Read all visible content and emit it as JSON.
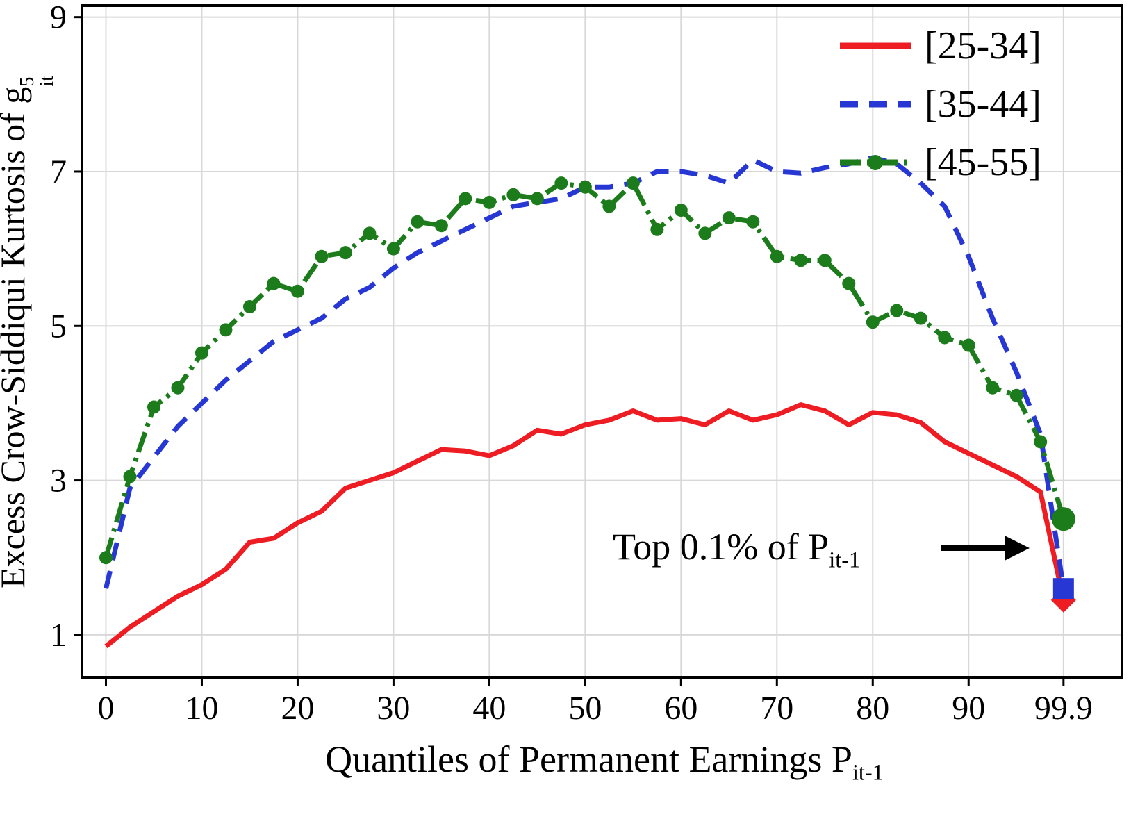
{
  "figure": {
    "bg": "#ffffff",
    "grid_color": "#d8d8d8",
    "axis_color": "#000000"
  },
  "chart_data": {
    "type": "line",
    "title": "",
    "xlabel_main": "Quantiles of Permanent Earnings P",
    "xlabel_sub": "it-1",
    "ylabel_main": "Excess Crow-Siddiqui Kurtosis of g",
    "ylabel_sup": "5",
    "ylabel_sub": "it",
    "xlim": [
      -2.5,
      106
    ],
    "ylim": [
      0.45,
      9.15
    ],
    "grid": true,
    "legend_position": "top-right",
    "xticks": [
      {
        "v": 0,
        "label": "0"
      },
      {
        "v": 10,
        "label": "10"
      },
      {
        "v": 20,
        "label": "20"
      },
      {
        "v": 30,
        "label": "30"
      },
      {
        "v": 40,
        "label": "40"
      },
      {
        "v": 50,
        "label": "50"
      },
      {
        "v": 60,
        "label": "60"
      },
      {
        "v": 70,
        "label": "70"
      },
      {
        "v": 80,
        "label": "80"
      },
      {
        "v": 90,
        "label": "90"
      },
      {
        "v": 99.9,
        "label": "99.9"
      }
    ],
    "yticks": [
      {
        "v": 1,
        "label": "1"
      },
      {
        "v": 3,
        "label": "3"
      },
      {
        "v": 5,
        "label": "5"
      },
      {
        "v": 7,
        "label": "7"
      },
      {
        "v": 9,
        "label": "9"
      }
    ],
    "x": [
      0,
      2.5,
      5,
      7.5,
      10,
      12.5,
      15,
      17.5,
      20,
      22.5,
      25,
      27.5,
      30,
      32.5,
      35,
      37.5,
      40,
      42.5,
      45,
      47.5,
      50,
      52.5,
      55,
      57.5,
      60,
      62.5,
      65,
      67.5,
      70,
      72.5,
      75,
      77.5,
      80,
      82.5,
      85,
      87.5,
      90,
      92.5,
      95,
      97.5,
      99.9
    ],
    "series": [
      {
        "name": "[25-34]",
        "color": "#ee1c23",
        "style": "solid",
        "marker": "none",
        "end_marker": "diamond",
        "values": [
          0.85,
          1.1,
          1.3,
          1.5,
          1.65,
          1.85,
          2.2,
          2.25,
          2.45,
          2.6,
          2.9,
          3.0,
          3.1,
          3.25,
          3.4,
          3.38,
          3.32,
          3.45,
          3.65,
          3.6,
          3.72,
          3.78,
          3.9,
          3.78,
          3.8,
          3.72,
          3.9,
          3.78,
          3.85,
          3.98,
          3.9,
          3.72,
          3.88,
          3.85,
          3.75,
          3.5,
          3.35,
          3.2,
          3.05,
          2.85,
          1.45
        ]
      },
      {
        "name": "[35-44]",
        "color": "#2737d3",
        "style": "dashed",
        "marker": "none",
        "end_marker": "square",
        "values": [
          1.6,
          2.9,
          3.3,
          3.7,
          4.0,
          4.3,
          4.55,
          4.8,
          4.95,
          5.1,
          5.35,
          5.5,
          5.75,
          5.95,
          6.1,
          6.25,
          6.4,
          6.55,
          6.6,
          6.65,
          6.8,
          6.8,
          6.85,
          7.0,
          7.0,
          6.95,
          6.85,
          7.15,
          7.0,
          6.98,
          7.05,
          7.1,
          7.18,
          7.1,
          6.85,
          6.55,
          5.9,
          5.1,
          4.4,
          3.6,
          1.6
        ]
      },
      {
        "name": "[45-55]",
        "color": "#1c7c1c",
        "style": "dashdot",
        "marker": "circle",
        "end_marker": "circle",
        "values": [
          2.0,
          3.05,
          3.95,
          4.2,
          4.65,
          4.95,
          5.25,
          5.55,
          5.45,
          5.9,
          5.95,
          6.2,
          6.0,
          6.35,
          6.3,
          6.65,
          6.6,
          6.7,
          6.65,
          6.85,
          6.8,
          6.55,
          6.85,
          6.25,
          6.5,
          6.2,
          6.4,
          6.35,
          5.9,
          5.85,
          5.85,
          5.55,
          5.05,
          5.2,
          5.1,
          4.85,
          4.75,
          4.2,
          4.1,
          3.5,
          2.5
        ]
      }
    ],
    "annotation": {
      "text_main": "Top 0.1% of P",
      "text_sub": "it-1"
    }
  }
}
